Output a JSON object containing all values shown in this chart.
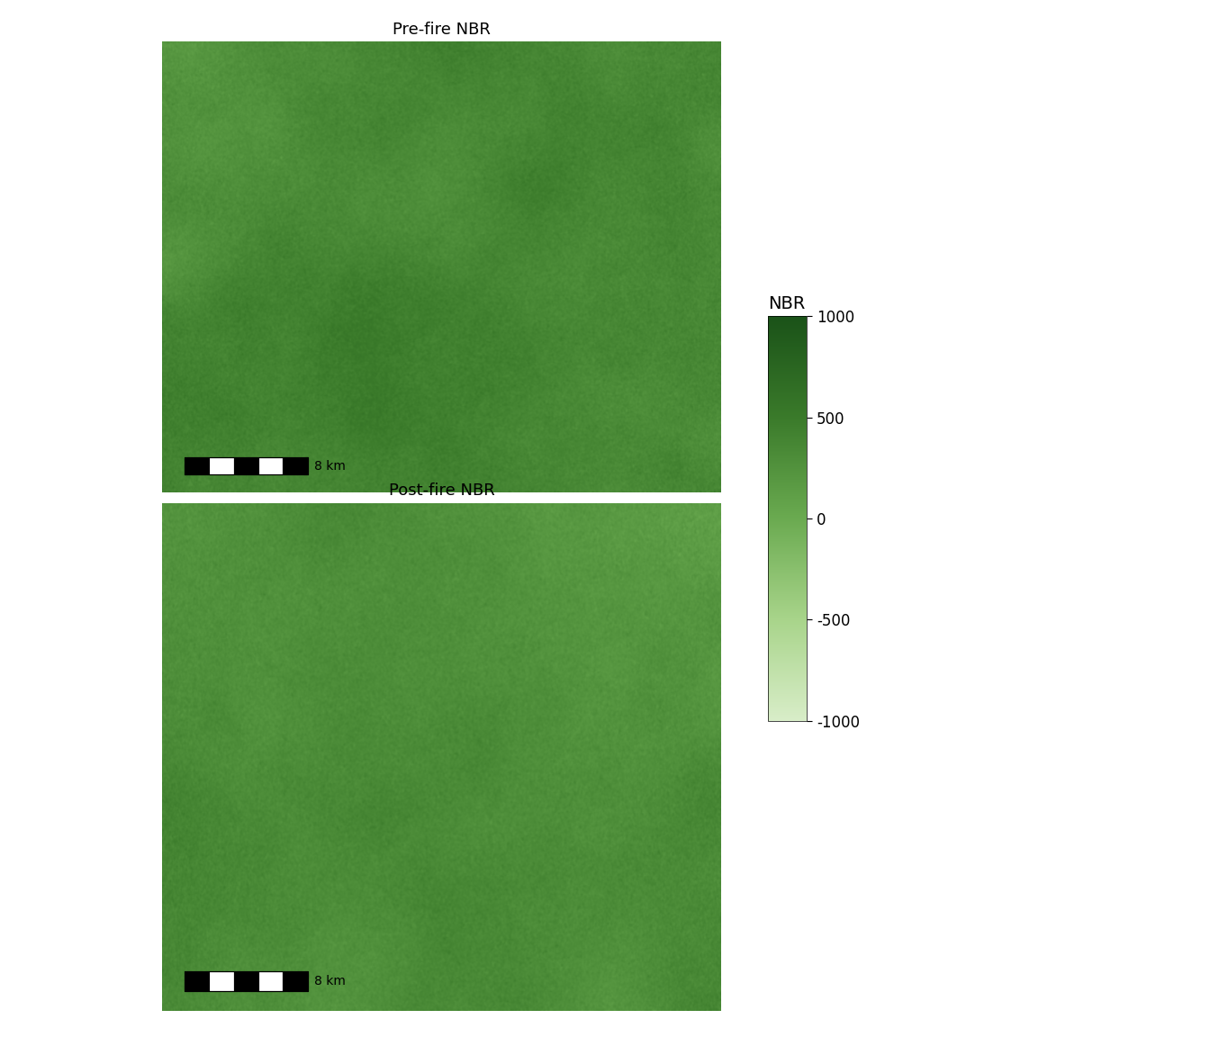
{
  "title_pre": "Pre-fire NBR",
  "title_post": "Post-fire NBR",
  "colorbar_label": "NBR",
  "colorbar_ticks": [
    1000,
    500,
    0,
    -500,
    -1000
  ],
  "colorbar_vmin": -1000,
  "colorbar_vmax": 1000,
  "scale_bar_label": "8 km",
  "color_dark": "#1a5218",
  "color_mid_dark": "#3a7a2a",
  "color_mid": "#6aaa50",
  "color_mid_light": "#a8d48a",
  "color_light": "#d8edc8",
  "background_color": "#ffffff",
  "image_shape": [
    460,
    620
  ],
  "figsize": [
    13.44,
    11.52
  ],
  "dpi": 100,
  "title_fontsize": 13,
  "cbar_label_fontsize": 14,
  "cbar_tick_fontsize": 12,
  "scale_label_fontsize": 10
}
